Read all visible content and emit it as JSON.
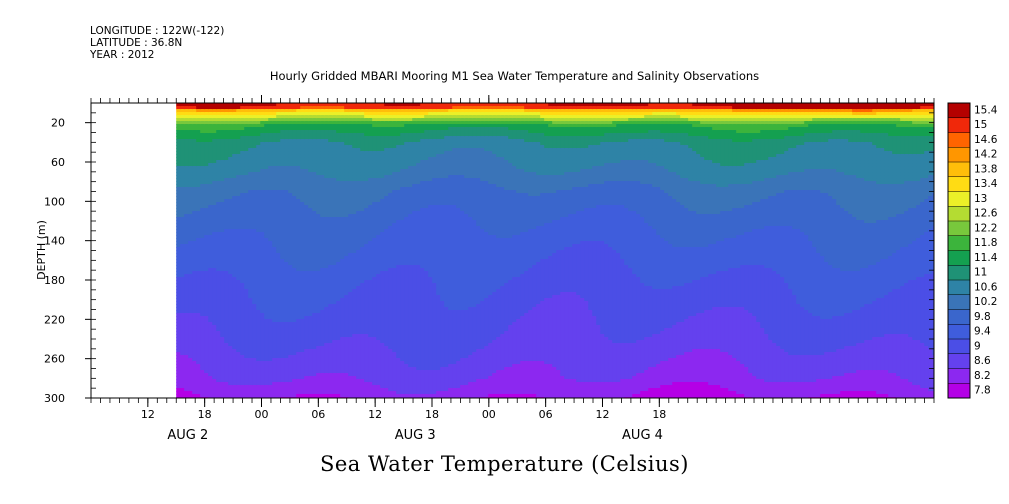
{
  "header": {
    "longitude": "LONGITUDE : 122W(-122)",
    "latitude": "LATITUDE : 36.8N",
    "year": "YEAR : 2012"
  },
  "title": "Hourly Gridded MBARI Mooring M1 Sea Water Temperature and Salinity Observations",
  "bottom_title": "Sea Water Temperature (Celsius)",
  "chart_data": {
    "type": "heatmap",
    "title": "Hourly Gridded MBARI Mooring M1 Sea Water Temperature and Salinity Observations",
    "xlabel": "",
    "ylabel": "DEPTH (m)",
    "x_axis": {
      "kind": "time",
      "range": [
        "2012-08-01T06:00",
        "2012-08-04T23:00"
      ],
      "data_start": "2012-08-01T15:00",
      "ticks": [
        {
          "time": "2012-08-01T12:00",
          "label": "12"
        },
        {
          "time": "2012-08-01T18:00",
          "label": "18"
        },
        {
          "time": "2012-08-02T00:00",
          "label": "00"
        },
        {
          "time": "2012-08-02T06:00",
          "label": "06"
        },
        {
          "time": "2012-08-02T12:00",
          "label": "12"
        },
        {
          "time": "2012-08-02T18:00",
          "label": "18"
        },
        {
          "time": "2012-08-03T00:00",
          "label": "00"
        },
        {
          "time": "2012-08-03T06:00",
          "label": "06"
        },
        {
          "time": "2012-08-03T12:00",
          "label": "12"
        },
        {
          "time": "2012-08-03T18:00",
          "label": "18"
        }
      ],
      "day_labels": [
        {
          "time": "2012-08-01T12:00",
          "label": "AUG  2"
        },
        {
          "time": "2012-08-02T12:00",
          "label": "AUG  3"
        },
        {
          "time": "2012-08-03T12:00",
          "label": "AUG  4"
        }
      ]
    },
    "y_axis": {
      "range": [
        300,
        0
      ],
      "ticks": [
        20,
        60,
        100,
        140,
        180,
        220,
        260,
        300
      ],
      "reversed": true
    },
    "colorbar": {
      "levels": [
        7.8,
        8.2,
        8.6,
        9,
        9.4,
        9.8,
        10.2,
        10.6,
        11,
        11.4,
        11.8,
        12.2,
        12.6,
        13,
        13.4,
        13.8,
        14.2,
        14.6,
        15,
        15.4
      ],
      "colors": [
        "#b400e6",
        "#8c28f0",
        "#6441ee",
        "#4b4ee6",
        "#3f5ddc",
        "#3a66cc",
        "#3a74b8",
        "#2e83a6",
        "#1f9276",
        "#14a050",
        "#3cb43c",
        "#78c83c",
        "#b4dc32",
        "#ebf028",
        "#ffdc14",
        "#ffbe0a",
        "#ff9600",
        "#ff6400",
        "#f0280a",
        "#b40000"
      ],
      "colors_note": "colors[i] fills the interval from levels[i-1] to levels[i]; colors[0] is below 7.8"
    },
    "depth_profile": [
      {
        "depth": 4,
        "value": 15.0
      },
      {
        "depth": 8,
        "value": 13.4
      },
      {
        "depth": 14,
        "value": 12.6
      },
      {
        "depth": 22,
        "value": 11.4
      },
      {
        "depth": 40,
        "value": 10.6
      },
      {
        "depth": 70,
        "value": 10.2
      },
      {
        "depth": 90,
        "value": 9.8
      },
      {
        "depth": 130,
        "value": 9.4
      },
      {
        "depth": 180,
        "value": 9.0
      },
      {
        "depth": 240,
        "value": 8.6
      },
      {
        "depth": 280,
        "value": 8.2
      },
      {
        "depth": 300,
        "value": 7.8
      }
    ],
    "surface_warm_event": {
      "time": "2012-08-04T15:00",
      "max_value": 15.4
    }
  }
}
